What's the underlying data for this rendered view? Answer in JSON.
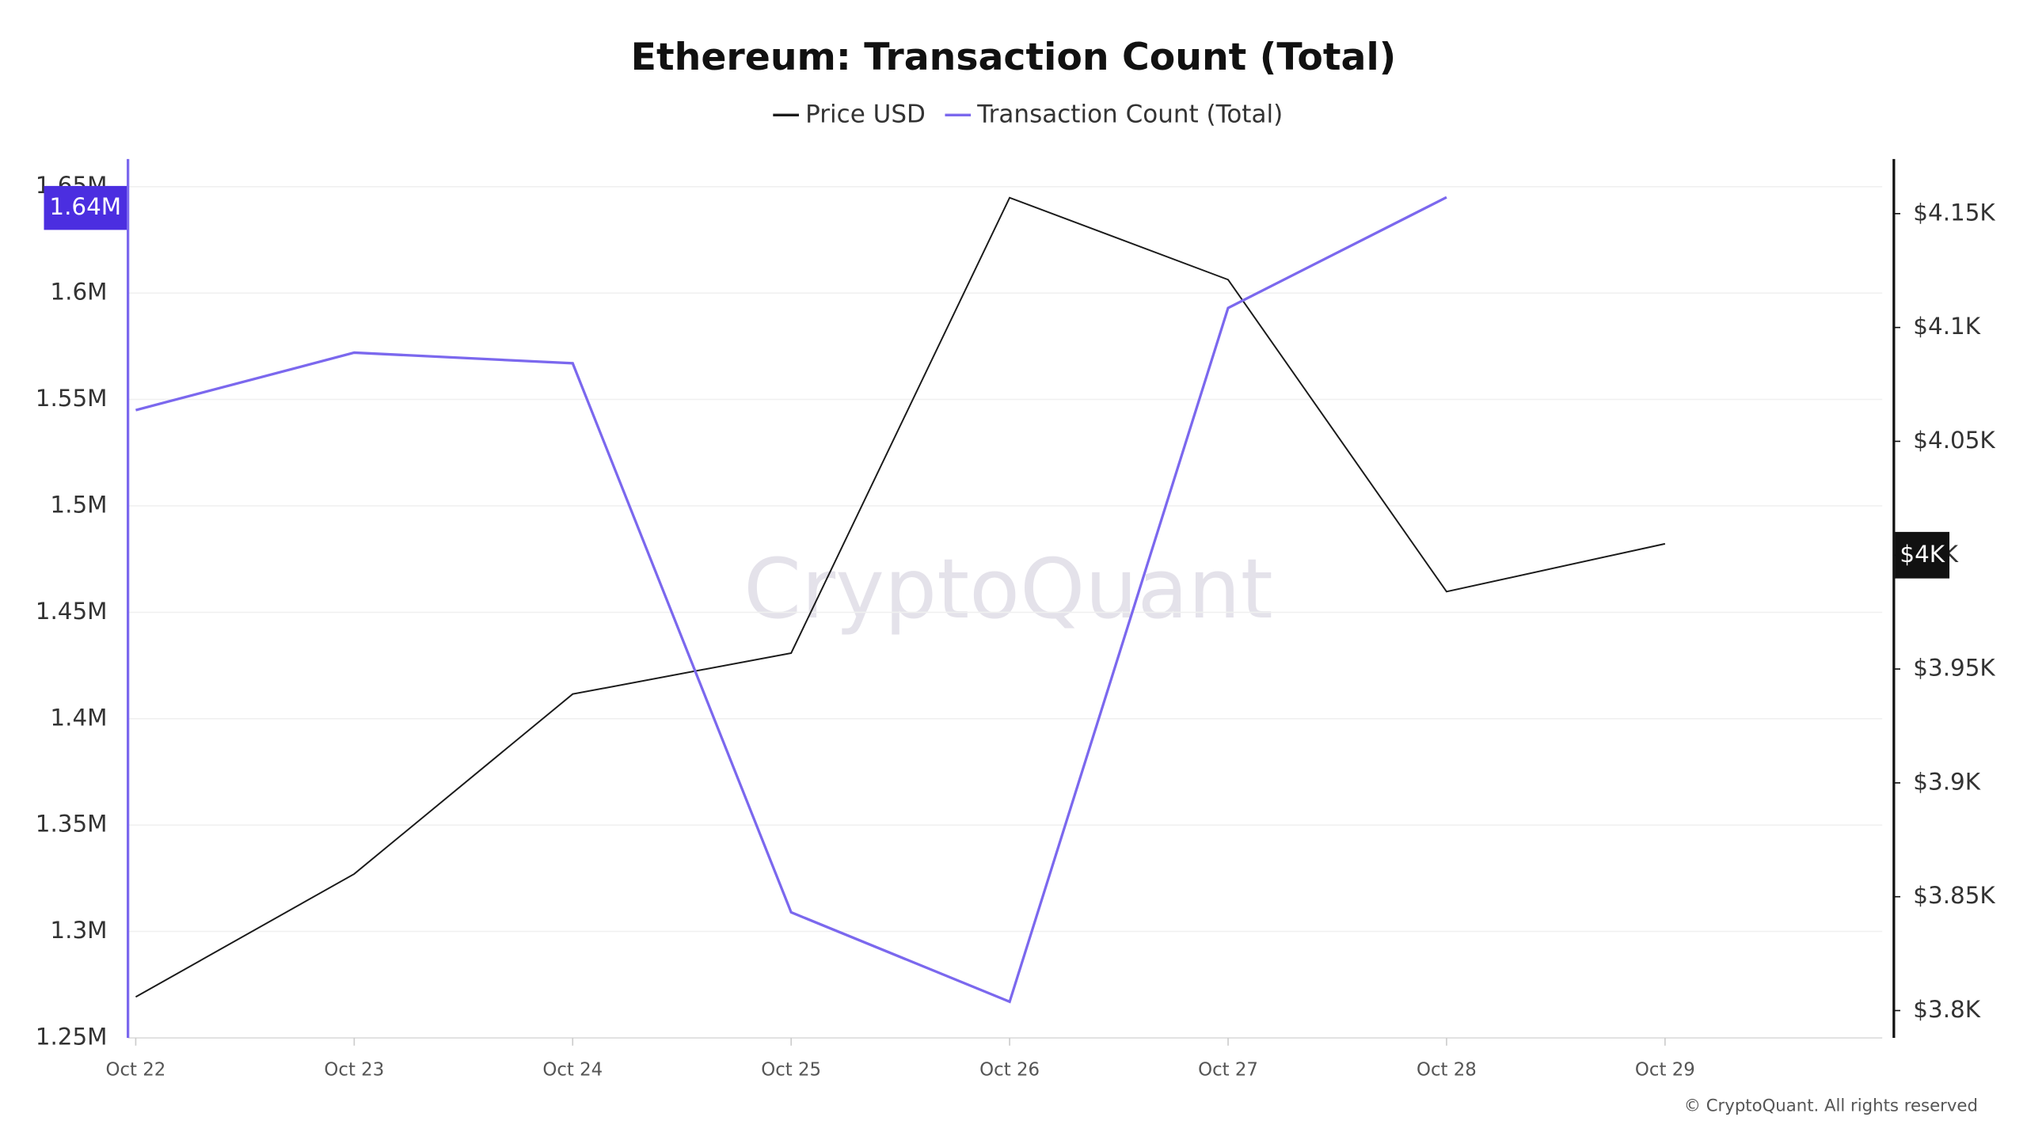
{
  "chart_data": {
    "type": "line",
    "title": "Ethereum: Transaction Count (Total)",
    "categories": [
      "Oct 22",
      "Oct 23",
      "Oct 24",
      "Oct 25",
      "Oct 26",
      "Oct 27",
      "Oct 28",
      "Oct 29"
    ],
    "series": [
      {
        "name": "Price USD",
        "color": "#1a1a1a",
        "axis": "y2",
        "values": [
          3806,
          3860,
          3939,
          3957,
          4157,
          4121,
          3984,
          4005
        ]
      },
      {
        "name": "Transaction Count (Total)",
        "color": "#7b68ee",
        "values": [
          1545000,
          1572000,
          1567000,
          1309000,
          1267000,
          1593000,
          1645000,
          null
        ]
      }
    ],
    "ylim": [
      1250000,
      1663000
    ],
    "yticks": [
      {
        "value": 1250000,
        "label": "1.25M"
      },
      {
        "value": 1300000,
        "label": "1.3M"
      },
      {
        "value": 1350000,
        "label": "1.35M"
      },
      {
        "value": 1400000,
        "label": "1.4M"
      },
      {
        "value": 1450000,
        "label": "1.45M"
      },
      {
        "value": 1500000,
        "label": "1.5M"
      },
      {
        "value": 1550000,
        "label": "1.55M"
      },
      {
        "value": 1600000,
        "label": "1.6M"
      },
      {
        "value": 1650000,
        "label": "1.65M"
      }
    ],
    "y2lim": [
      3788,
      4174
    ],
    "y2ticks": [
      {
        "value": 3800,
        "label": "$3.8K"
      },
      {
        "value": 3850,
        "label": "$3.85K"
      },
      {
        "value": 3900,
        "label": "$3.9K"
      },
      {
        "value": 3950,
        "label": "$3.95K"
      },
      {
        "value": 4000,
        "label": "$4K"
      },
      {
        "value": 4050,
        "label": "$4.05K"
      },
      {
        "value": 4100,
        "label": "$4.1K"
      },
      {
        "value": 4150,
        "label": "$4.15K"
      }
    ],
    "current_labels": [
      {
        "value": 1640000,
        "label": "1.64M",
        "color": "#4b2ee0"
      },
      {
        "value": 4000,
        "label": "$4K",
        "axis": "y2",
        "color": "#111111"
      }
    ],
    "grid": true,
    "watermark": "CryptoQuant",
    "footer": "© CryptoQuant. All rights reserved"
  }
}
